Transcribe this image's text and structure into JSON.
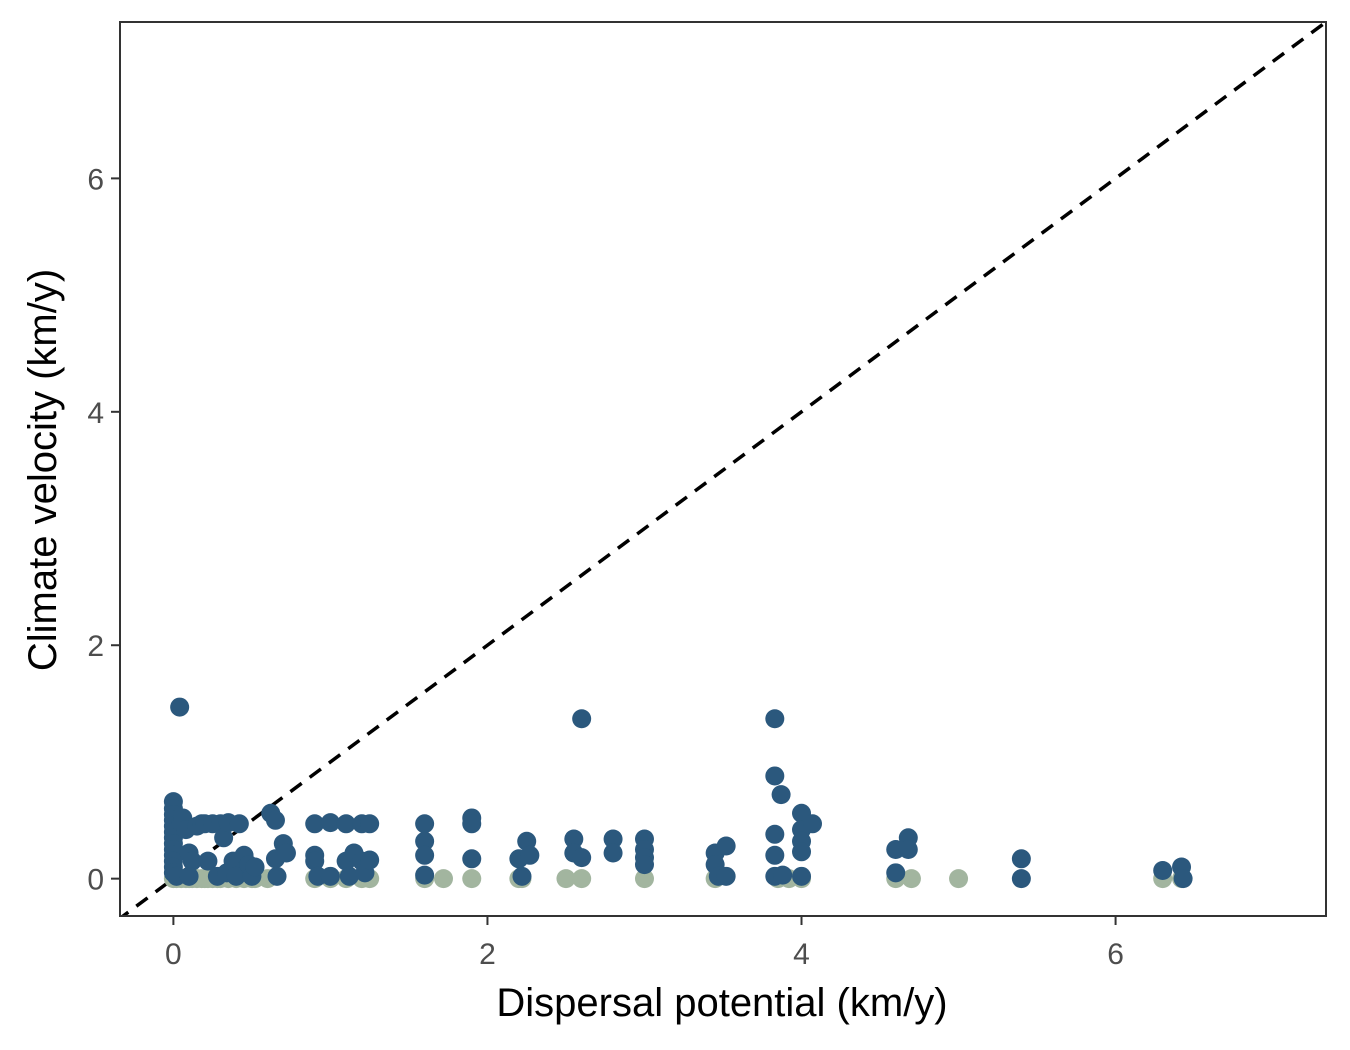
{
  "chart_data": {
    "type": "scatter",
    "xlabel": "Dispersal potential (km/y)",
    "ylabel": "Climate velocity (km/y)",
    "xlim": [
      -0.34,
      7.34
    ],
    "ylim": [
      -0.32,
      7.34
    ],
    "x_ticks": [
      0,
      2,
      4,
      6
    ],
    "y_ticks": [
      0,
      2,
      4,
      6
    ],
    "x_tick_labels": [
      "0",
      "2",
      "4",
      "6"
    ],
    "y_tick_labels": [
      "0",
      "2",
      "4",
      "6"
    ],
    "grid": false,
    "legend": "none",
    "reference_line": {
      "style": "dashed",
      "color": "#000000",
      "slope": 1,
      "intercept": 0
    },
    "series": [
      {
        "color": "#a2b59f",
        "points": [
          [
            0,
            0
          ],
          [
            0.02,
            0
          ],
          [
            0.05,
            0
          ],
          [
            0.08,
            0
          ],
          [
            0.1,
            0
          ],
          [
            0.12,
            0
          ],
          [
            0.15,
            0
          ],
          [
            0.18,
            0
          ],
          [
            0.2,
            0
          ],
          [
            0.22,
            0
          ],
          [
            0.25,
            0
          ],
          [
            0.28,
            0
          ],
          [
            0.3,
            0
          ],
          [
            0.35,
            0
          ],
          [
            0.4,
            0
          ],
          [
            0.45,
            0
          ],
          [
            0.5,
            0
          ],
          [
            0.52,
            0
          ],
          [
            0.6,
            0
          ],
          [
            0.9,
            0
          ],
          [
            1.0,
            0
          ],
          [
            1.1,
            0
          ],
          [
            1.2,
            0
          ],
          [
            1.25,
            0
          ],
          [
            1.6,
            0
          ],
          [
            1.72,
            0
          ],
          [
            1.9,
            0
          ],
          [
            2.2,
            0
          ],
          [
            2.22,
            0
          ],
          [
            2.5,
            0
          ],
          [
            2.6,
            0
          ],
          [
            3.0,
            0
          ],
          [
            3.45,
            0
          ],
          [
            3.85,
            0
          ],
          [
            3.92,
            0
          ],
          [
            4.0,
            0
          ],
          [
            4.6,
            0
          ],
          [
            4.7,
            0
          ],
          [
            5.0,
            0
          ],
          [
            6.3,
            0
          ],
          [
            6.42,
            0
          ]
        ]
      },
      {
        "color": "#2b587d",
        "points": [
          [
            0.04,
            1.47
          ],
          [
            0,
            0.66
          ],
          [
            0,
            0.6
          ],
          [
            0,
            0.55
          ],
          [
            0,
            0.5
          ],
          [
            0,
            0.45
          ],
          [
            0,
            0.4
          ],
          [
            0,
            0.35
          ],
          [
            0,
            0.3
          ],
          [
            0,
            0.25
          ],
          [
            0,
            0.2
          ],
          [
            0,
            0.15
          ],
          [
            0,
            0.1
          ],
          [
            0,
            0.05
          ],
          [
            0.02,
            0.02
          ],
          [
            0.05,
            0.48
          ],
          [
            0.06,
            0.52
          ],
          [
            0.08,
            0.42
          ],
          [
            0.1,
            0.22
          ],
          [
            0.12,
            0.15
          ],
          [
            0.1,
            0.02
          ],
          [
            0.15,
            0.45
          ],
          [
            0.18,
            0.47
          ],
          [
            0.2,
            0.47
          ],
          [
            0.22,
            0.15
          ],
          [
            0.25,
            0.47
          ],
          [
            0.28,
            0.02
          ],
          [
            0.3,
            0.47
          ],
          [
            0.32,
            0.35
          ],
          [
            0.35,
            0.48
          ],
          [
            0.34,
            0.05
          ],
          [
            0.38,
            0.15
          ],
          [
            0.4,
            0.02
          ],
          [
            0.42,
            0.47
          ],
          [
            0.45,
            0.2
          ],
          [
            0.48,
            0.12
          ],
          [
            0.5,
            0.02
          ],
          [
            0.52,
            0.1
          ],
          [
            0.62,
            0.56
          ],
          [
            0.65,
            0.5
          ],
          [
            0.65,
            0.17
          ],
          [
            0.66,
            0.02
          ],
          [
            0.7,
            0.3
          ],
          [
            0.72,
            0.22
          ],
          [
            0.9,
            0.47
          ],
          [
            0.9,
            0.2
          ],
          [
            0.9,
            0.15
          ],
          [
            0.92,
            0.02
          ],
          [
            1.0,
            0.48
          ],
          [
            1.0,
            0.02
          ],
          [
            1.1,
            0.47
          ],
          [
            1.1,
            0.15
          ],
          [
            1.12,
            0.02
          ],
          [
            1.15,
            0.22
          ],
          [
            1.2,
            0.47
          ],
          [
            1.2,
            0.15
          ],
          [
            1.22,
            0.05
          ],
          [
            1.25,
            0.47
          ],
          [
            1.25,
            0.16
          ],
          [
            1.6,
            0.47
          ],
          [
            1.6,
            0.32
          ],
          [
            1.6,
            0.2
          ],
          [
            1.6,
            0.03
          ],
          [
            1.9,
            0.52
          ],
          [
            1.9,
            0.47
          ],
          [
            1.9,
            0.17
          ],
          [
            2.2,
            0.17
          ],
          [
            2.22,
            0.02
          ],
          [
            2.25,
            0.32
          ],
          [
            2.27,
            0.2
          ],
          [
            2.55,
            0.34
          ],
          [
            2.55,
            0.22
          ],
          [
            2.6,
            1.37
          ],
          [
            2.6,
            0.18
          ],
          [
            2.8,
            0.34
          ],
          [
            2.8,
            0.22
          ],
          [
            3.0,
            0.34
          ],
          [
            3.0,
            0.25
          ],
          [
            3.0,
            0.18
          ],
          [
            3.0,
            0.12
          ],
          [
            3.45,
            0.22
          ],
          [
            3.45,
            0.12
          ],
          [
            3.47,
            0.02
          ],
          [
            3.52,
            0.28
          ],
          [
            3.52,
            0.02
          ],
          [
            3.83,
            1.37
          ],
          [
            3.83,
            0.88
          ],
          [
            3.83,
            0.38
          ],
          [
            3.83,
            0.2
          ],
          [
            3.83,
            0.02
          ],
          [
            3.87,
            0.72
          ],
          [
            3.88,
            0.03
          ],
          [
            4.0,
            0.56
          ],
          [
            4.0,
            0.42
          ],
          [
            4.0,
            0.32
          ],
          [
            4.0,
            0.23
          ],
          [
            4.0,
            0.02
          ],
          [
            4.07,
            0.47
          ],
          [
            4.6,
            0.25
          ],
          [
            4.6,
            0.05
          ],
          [
            4.68,
            0.35
          ],
          [
            4.68,
            0.25
          ],
          [
            5.4,
            0.17
          ],
          [
            5.4,
            0.0
          ],
          [
            6.3,
            0.07
          ],
          [
            6.42,
            0.1
          ],
          [
            6.43,
            0.0
          ]
        ]
      }
    ]
  }
}
